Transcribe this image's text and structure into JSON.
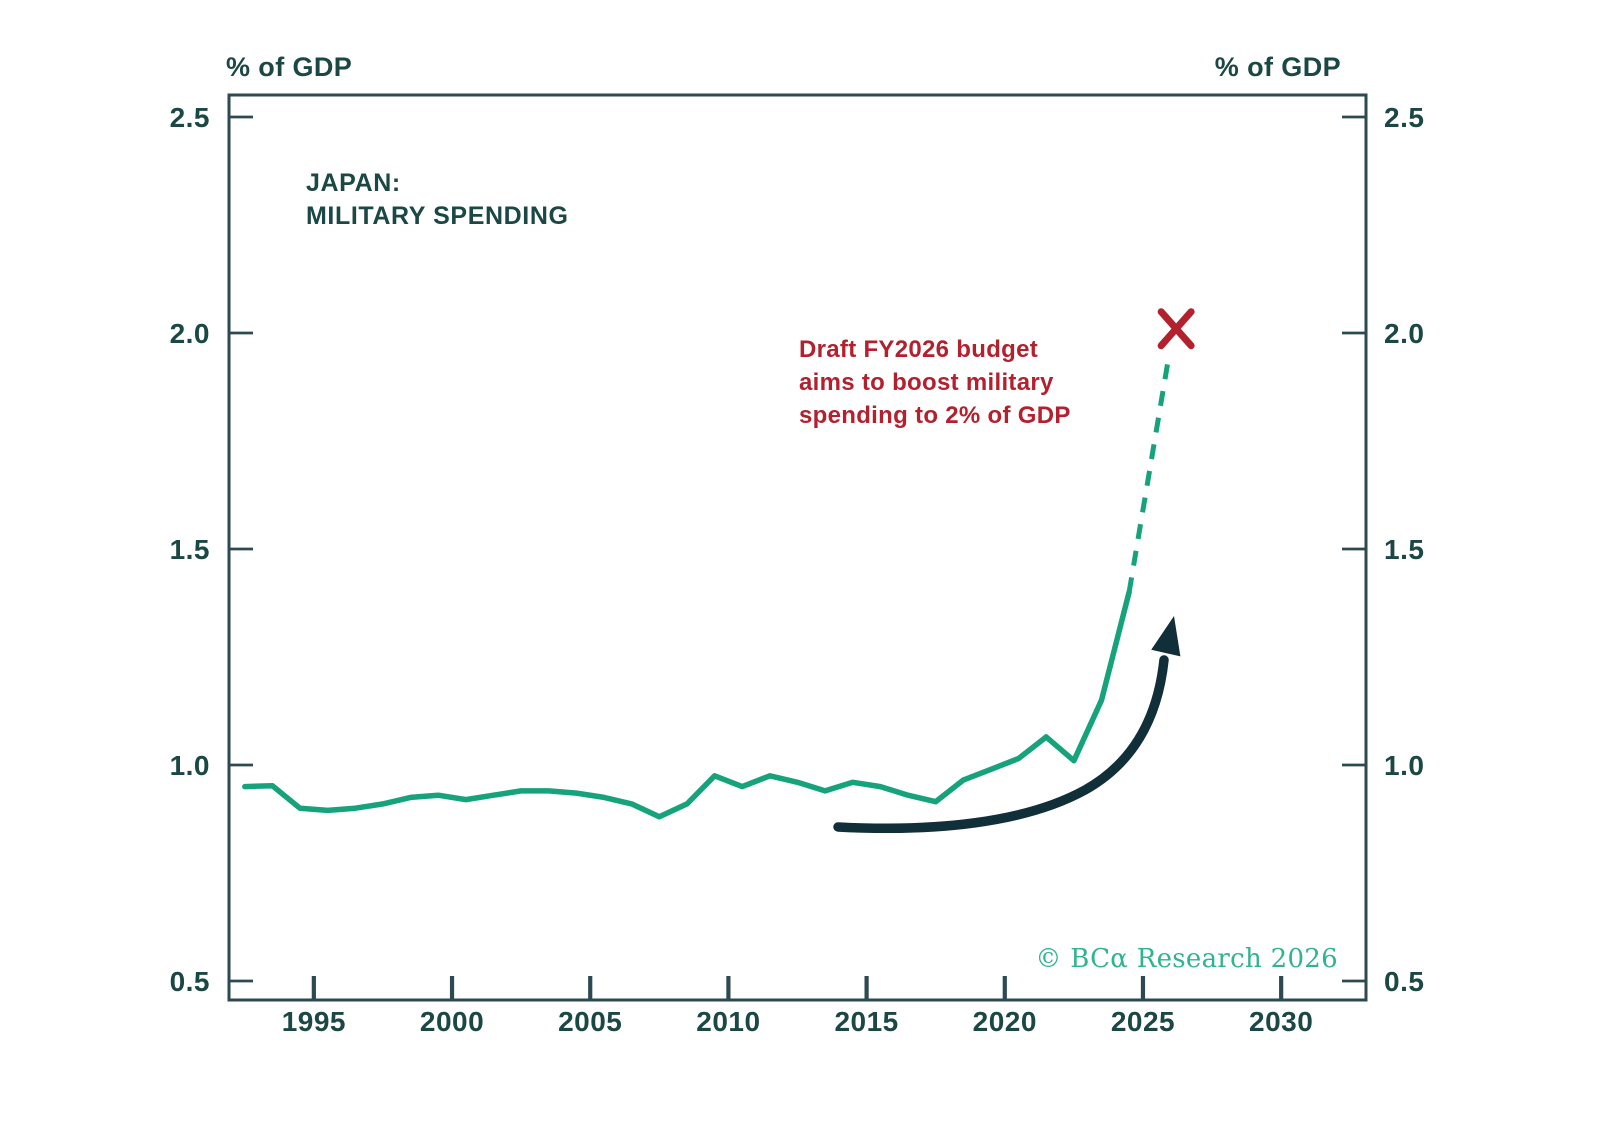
{
  "header": {
    "axis_label_left": "% of GDP",
    "axis_label_right": "% of GDP"
  },
  "title": {
    "line1": "JAPAN:",
    "line2": "MILITARY SPENDING"
  },
  "annotation": {
    "line1": "Draft FY2026 budget",
    "line2": "aims to boost military",
    "line3": "spending to 2% of GDP"
  },
  "copyright": {
    "text": "© BCα Research 2026"
  },
  "colors": {
    "line_green": "#16a37c",
    "axis": "#2d4a52",
    "text_teal": "#1b4744",
    "annotation_red": "#b2212d",
    "arrow_navy": "#112f38",
    "copyright_green": "#2eb491",
    "background": "#ffffff"
  },
  "chart_data": {
    "type": "line",
    "title": "JAPAN: MILITARY SPENDING",
    "xlabel": "",
    "ylabel": "% of GDP",
    "grid": false,
    "legend": "none",
    "x_tick_labels": [
      "1995",
      "2000",
      "2005",
      "2010",
      "2015",
      "2020",
      "2025",
      "2030"
    ],
    "y_tick_labels": [
      "2.5",
      "2.0",
      "1.5",
      "1.0",
      "0.5"
    ],
    "x_range": [
      1991.93,
      2033.07
    ],
    "y_range": [
      0.456,
      2.551
    ],
    "series": [
      {
        "name": "Japan military spending (% of GDP)",
        "style": "solid",
        "x": [
          1992.5,
          1993.5,
          1994.5,
          1995.5,
          1996.5,
          1997.5,
          1998.5,
          1999.5,
          2000.5,
          2001.5,
          2002.5,
          2003.5,
          2004.5,
          2005.5,
          2006.5,
          2007.5,
          2008.5,
          2009.5,
          2010.5,
          2011.5,
          2012.5,
          2013.5,
          2014.5,
          2015.5,
          2016.5,
          2017.5,
          2018.5,
          2019.5,
          2020.5,
          2021.5,
          2022.5,
          2023.5,
          2024.5
        ],
        "values": [
          0.95,
          0.952,
          0.9,
          0.895,
          0.9,
          0.91,
          0.925,
          0.93,
          0.92,
          0.93,
          0.94,
          0.94,
          0.935,
          0.925,
          0.91,
          0.88,
          0.91,
          0.975,
          0.95,
          0.975,
          0.96,
          0.94,
          0.96,
          0.95,
          0.93,
          0.915,
          0.965,
          0.99,
          1.015,
          1.065,
          1.01,
          1.15,
          1.4
        ]
      },
      {
        "name": "Projection to FY2026 2% target",
        "style": "dashed",
        "x": [
          2024.5,
          2026.2
        ],
        "values": [
          1.4,
          2.01
        ]
      }
    ],
    "target_marker": {
      "symbol": "X",
      "x": 2026.2,
      "value": 2.01
    },
    "annotation_text": "Draft FY2026 budget aims to boost military spending to 2% of GDP"
  }
}
